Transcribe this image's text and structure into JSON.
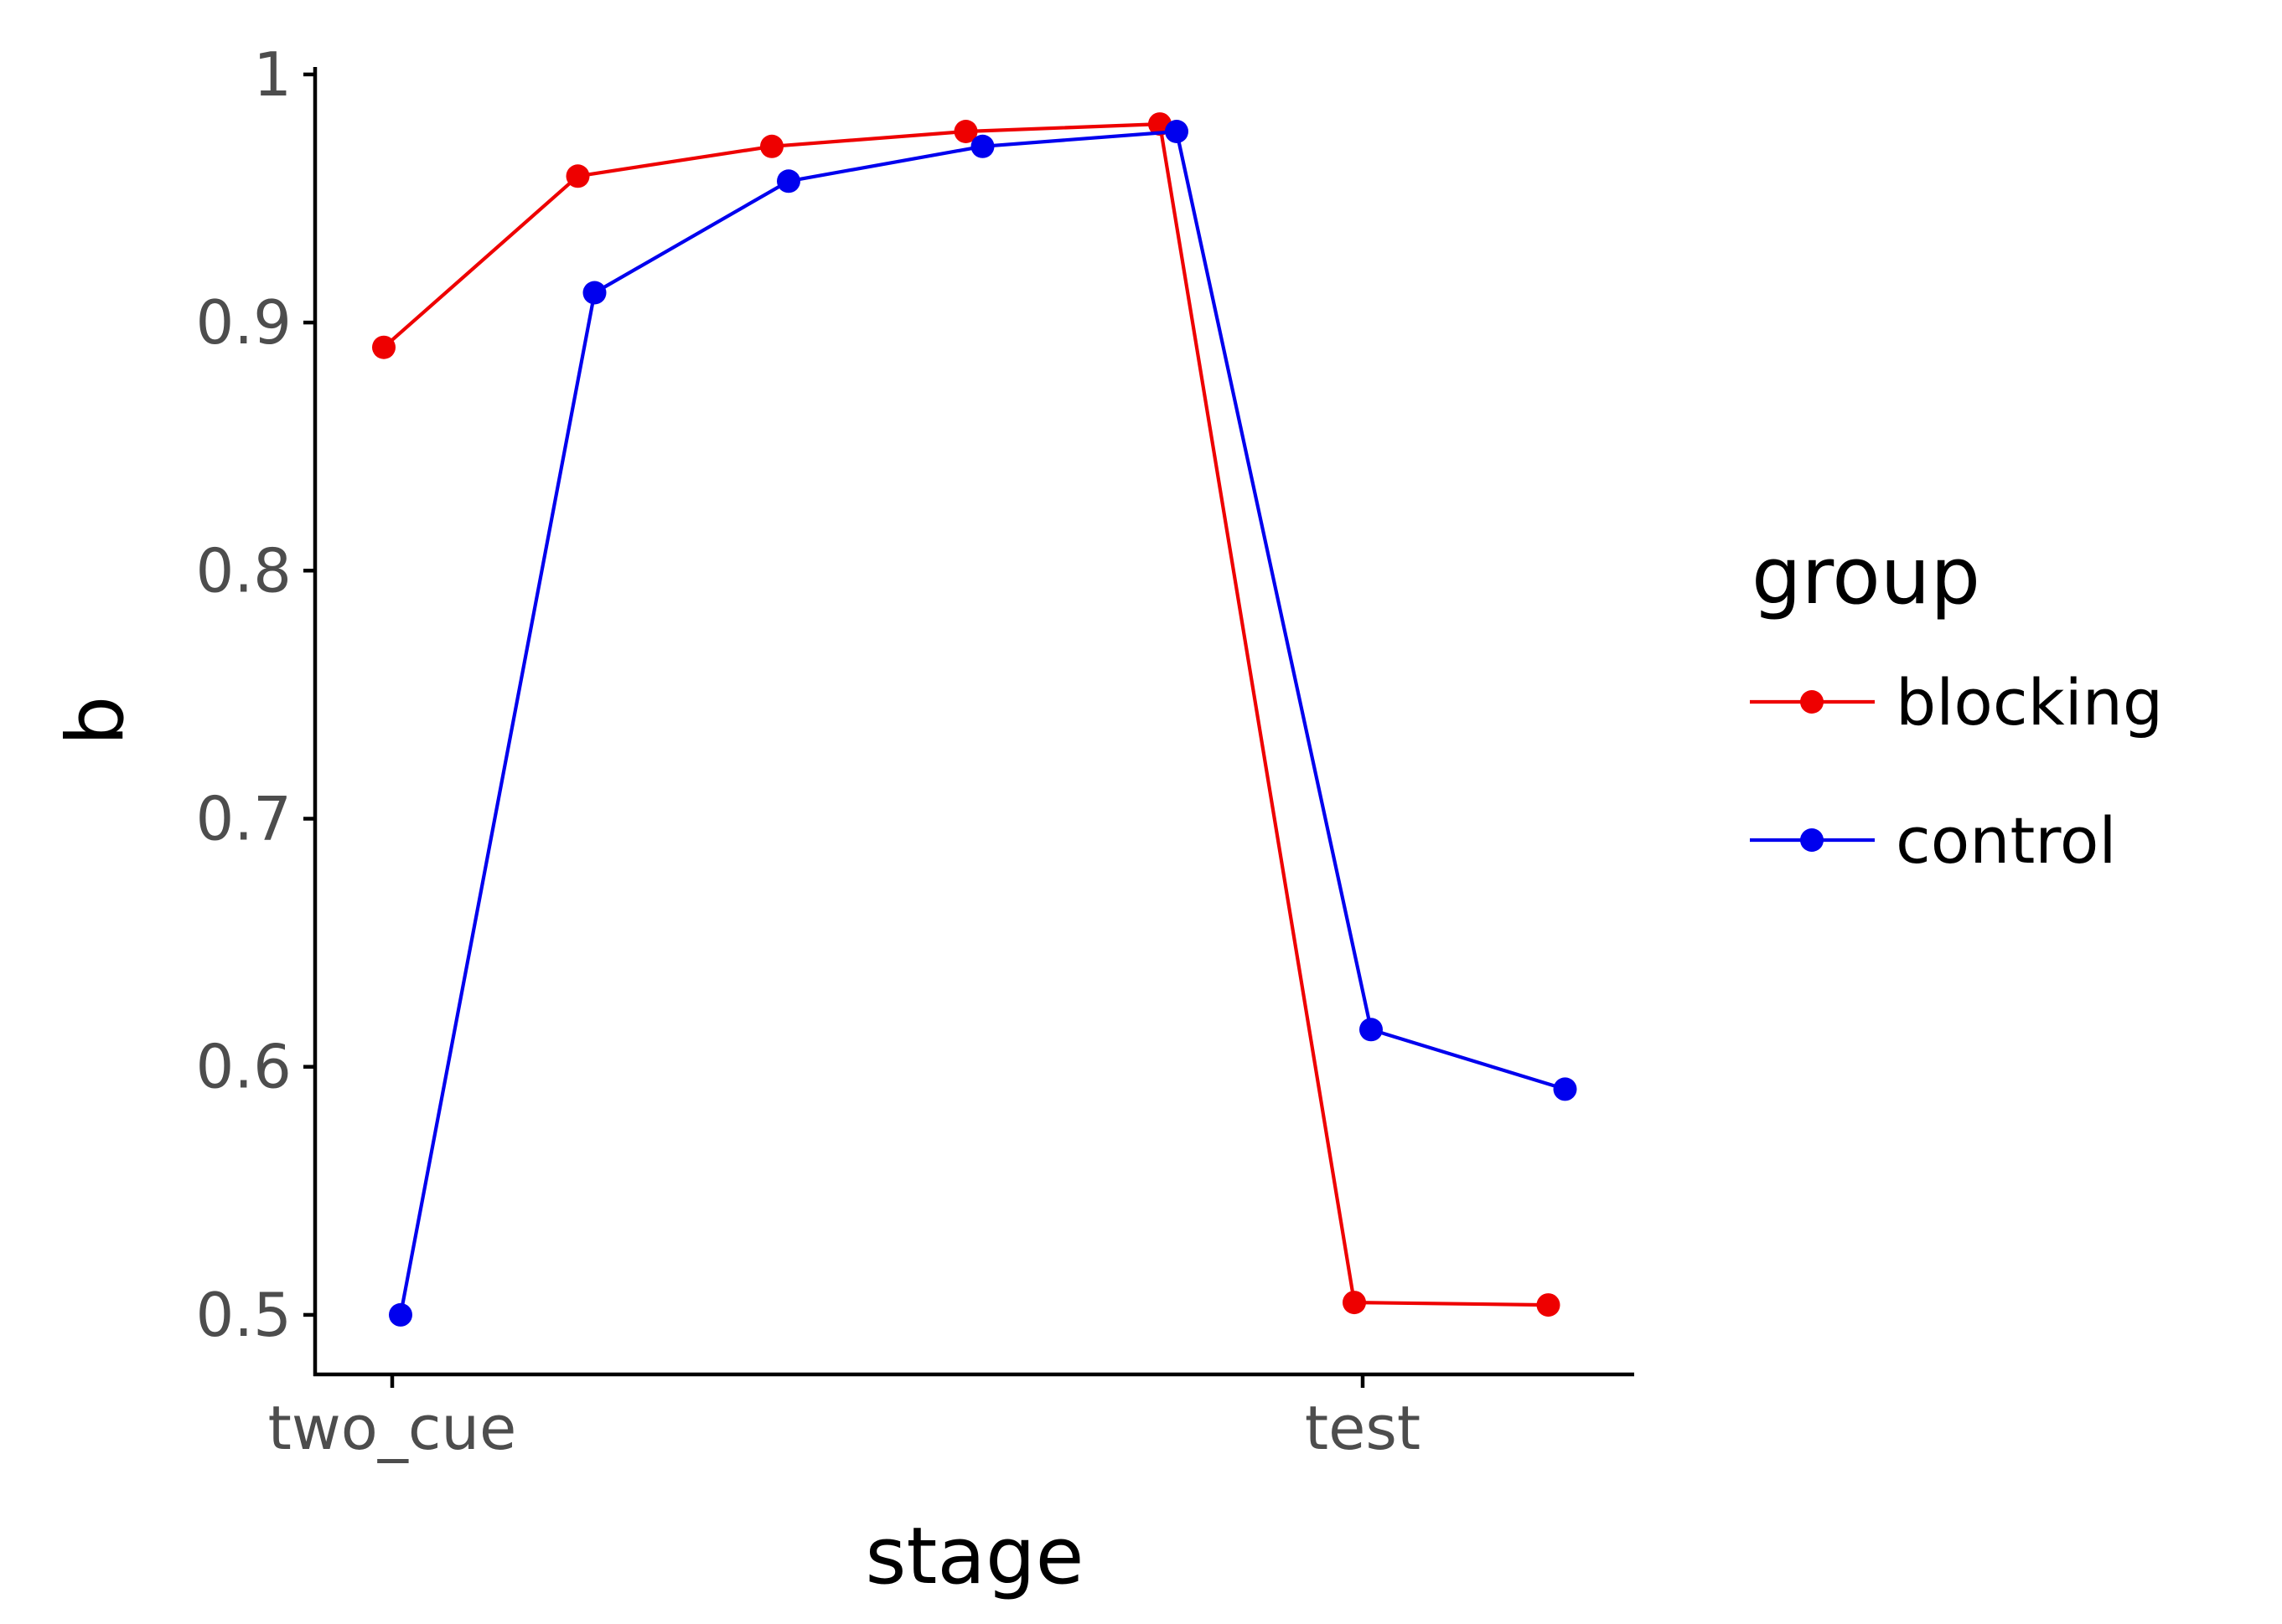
{
  "chart_data": {
    "type": "line",
    "xlabel": "stage",
    "ylabel": "b",
    "ylim": [
      0.476,
      1.003
    ],
    "x_tick_labels": [
      "two_cue",
      "test"
    ],
    "y_ticks": [
      "0.5",
      "0.6",
      "0.7",
      "0.8",
      "0.9",
      "1"
    ],
    "grid": false,
    "legend": {
      "title": "group",
      "position": "right",
      "entries": [
        "blocking",
        "control"
      ]
    },
    "series": [
      {
        "name": "blocking",
        "color": "#ee0000",
        "points": [
          {
            "stage": "two_cue",
            "trial": 1,
            "b": 0.89
          },
          {
            "stage": "two_cue",
            "trial": 2,
            "b": 0.959
          },
          {
            "stage": "two_cue",
            "trial": 3,
            "b": 0.971
          },
          {
            "stage": "two_cue",
            "trial": 4,
            "b": 0.977
          },
          {
            "stage": "two_cue",
            "trial": 5,
            "b": 0.98
          },
          {
            "stage": "test",
            "trial": 1,
            "b": 0.505
          },
          {
            "stage": "test",
            "trial": 2,
            "b": 0.504
          }
        ]
      },
      {
        "name": "control",
        "color": "#0000ee",
        "points": [
          {
            "stage": "two_cue",
            "trial": 1,
            "b": 0.5
          },
          {
            "stage": "two_cue",
            "trial": 2,
            "b": 0.912
          },
          {
            "stage": "two_cue",
            "trial": 3,
            "b": 0.957
          },
          {
            "stage": "two_cue",
            "trial": 4,
            "b": 0.971
          },
          {
            "stage": "two_cue",
            "trial": 5,
            "b": 0.977
          },
          {
            "stage": "test",
            "trial": 1,
            "b": 0.615
          },
          {
            "stage": "test",
            "trial": 2,
            "b": 0.591
          }
        ]
      }
    ]
  }
}
